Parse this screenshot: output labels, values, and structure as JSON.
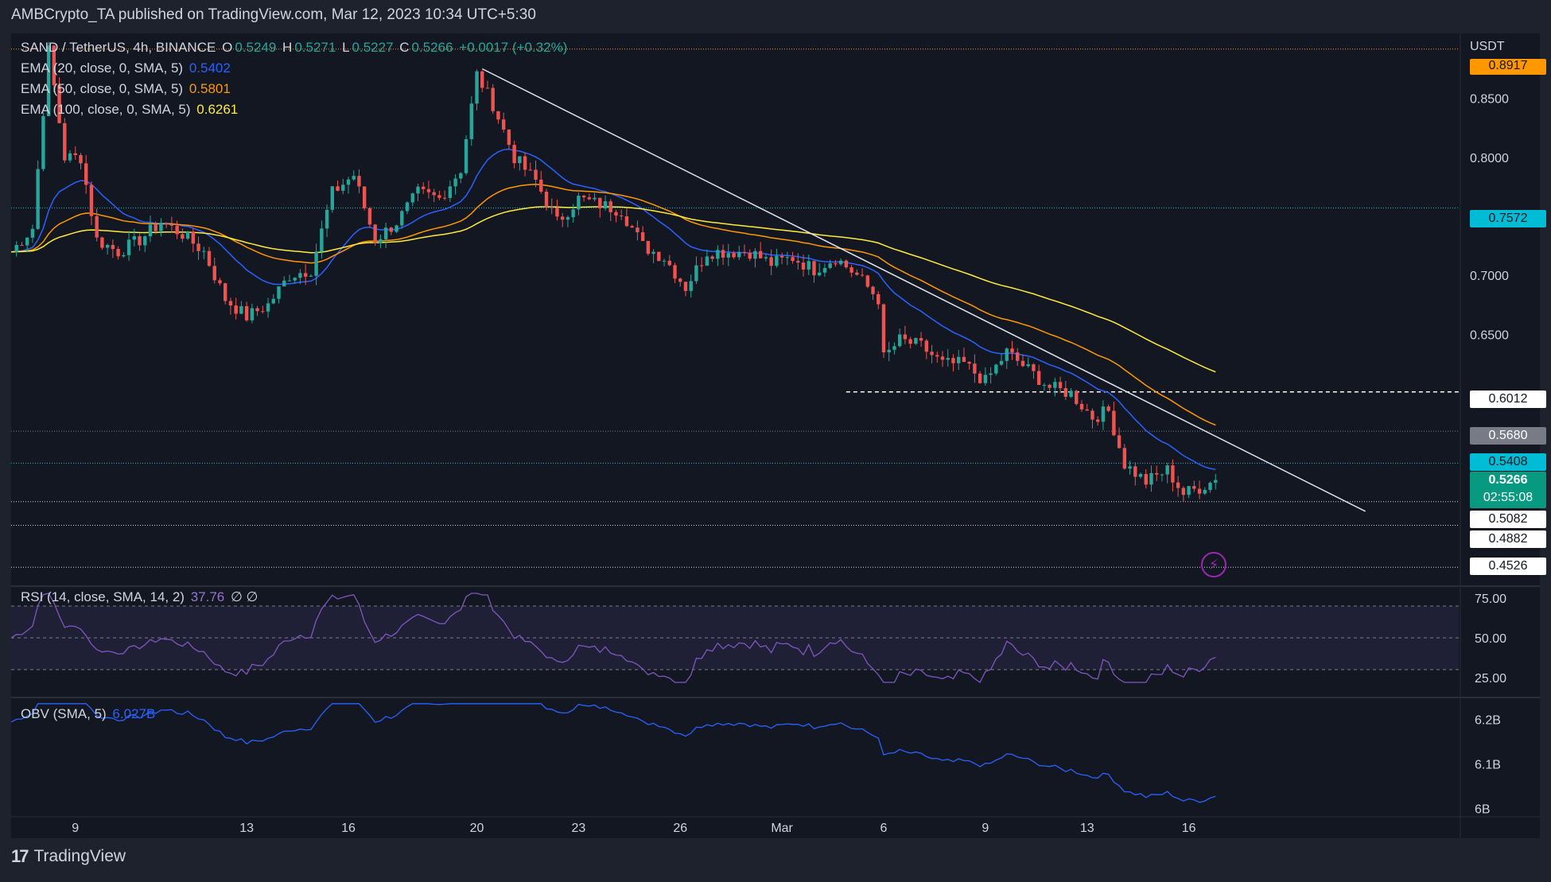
{
  "header": {
    "published_line": "AMBCrypto_TA published on TradingView.com, Mar 12, 2023 10:34 UTC+5:30"
  },
  "legend": {
    "symbol": "SAND / TetherUS, 4h, BINANCE",
    "open_label": "O",
    "open": "0.5249",
    "high_label": "H",
    "high": "0.5271",
    "low_label": "L",
    "low": "0.5227",
    "close_label": "C",
    "close": "0.5266",
    "change": "+0.0017 (+0.32%)",
    "ema20_label": "EMA (20, close, 0, SMA, 5)",
    "ema20_value": "0.5402",
    "ema50_label": "EMA (50, close, 0, SMA, 5)",
    "ema50_value": "0.5801",
    "ema100_label": "EMA (100, close, 0, SMA, 5)",
    "ema100_value": "0.6261",
    "rsi_label": "RSI (14, close, SMA, 14, 2)",
    "rsi_value": "37.76",
    "rsi_extra": "∅ ∅",
    "obv_label": "OBV (SMA, 5)",
    "obv_value": "6.027B"
  },
  "axis": {
    "currency": "USDT",
    "price_ticks": [
      "0.8500",
      "0.8000",
      "0.7000",
      "0.6500"
    ],
    "rsi_ticks": [
      "75.00",
      "50.00",
      "25.00"
    ],
    "obv_ticks": [
      "6.2B",
      "6.1B",
      "6B"
    ],
    "time_ticks": [
      "9",
      "13",
      "16",
      "20",
      "23",
      "26",
      "Mar",
      "6",
      "9",
      "13",
      "16"
    ]
  },
  "price_tags": {
    "top": "0.8917",
    "cyan": "0.7572",
    "dashed": "0.6012",
    "gray": "0.5680",
    "ema": "0.5408",
    "current": "0.5266",
    "countdown": "02:55:08",
    "level1": "0.5082",
    "level2": "0.4882",
    "level3": "0.4526"
  },
  "footer": {
    "logo": "17",
    "name": "TradingView"
  },
  "colors": {
    "up": "#26a69a",
    "down": "#ef5350",
    "ema20": "#2962ff",
    "ema50": "#ff9800",
    "ema100": "#ffeb3b",
    "rsi": "#7e57c2",
    "obv": "#2962ff"
  },
  "chart_data": {
    "type": "candlestick",
    "title": "SAND / TetherUS, 4h, BINANCE",
    "ylabel": "USDT",
    "ylim": [
      0.44,
      0.905
    ],
    "x_ticks": [
      "9",
      "13",
      "16",
      "20",
      "23",
      "26",
      "Mar",
      "6",
      "9",
      "13",
      "16"
    ],
    "price_path": [
      [
        0,
        0.72
      ],
      [
        4,
        0.74
      ],
      [
        7,
        0.89
      ],
      [
        10,
        0.8
      ],
      [
        13,
        0.8
      ],
      [
        16,
        0.73
      ],
      [
        20,
        0.72
      ],
      [
        24,
        0.73
      ],
      [
        28,
        0.745
      ],
      [
        32,
        0.735
      ],
      [
        36,
        0.72
      ],
      [
        40,
        0.68
      ],
      [
        44,
        0.665
      ],
      [
        48,
        0.675
      ],
      [
        52,
        0.7
      ],
      [
        56,
        0.705
      ],
      [
        60,
        0.77
      ],
      [
        64,
        0.785
      ],
      [
        68,
        0.73
      ],
      [
        72,
        0.745
      ],
      [
        76,
        0.77
      ],
      [
        80,
        0.765
      ],
      [
        84,
        0.79
      ],
      [
        87,
        0.87
      ],
      [
        90,
        0.845
      ],
      [
        94,
        0.8
      ],
      [
        98,
        0.78
      ],
      [
        102,
        0.745
      ],
      [
        106,
        0.765
      ],
      [
        110,
        0.76
      ],
      [
        114,
        0.755
      ],
      [
        118,
        0.725
      ],
      [
        122,
        0.715
      ],
      [
        126,
        0.69
      ],
      [
        130,
        0.72
      ],
      [
        134,
        0.72
      ],
      [
        138,
        0.72
      ],
      [
        142,
        0.71
      ],
      [
        146,
        0.715
      ],
      [
        150,
        0.705
      ],
      [
        154,
        0.715
      ],
      [
        158,
        0.7
      ],
      [
        162,
        0.68
      ],
      [
        163,
        0.63
      ],
      [
        166,
        0.645
      ],
      [
        170,
        0.64
      ],
      [
        174,
        0.625
      ],
      [
        178,
        0.625
      ],
      [
        182,
        0.61
      ],
      [
        186,
        0.635
      ],
      [
        190,
        0.62
      ],
      [
        194,
        0.605
      ],
      [
        198,
        0.6
      ],
      [
        202,
        0.58
      ],
      [
        205,
        0.585
      ],
      [
        208,
        0.54
      ],
      [
        212,
        0.525
      ],
      [
        216,
        0.535
      ],
      [
        219,
        0.515
      ],
      [
        222,
        0.52
      ],
      [
        225,
        0.5266
      ]
    ],
    "ema20": "0.5402",
    "ema50": "0.5801",
    "ema100": "0.6261",
    "trendline": {
      "from": [
        88,
        0.875
      ],
      "to": [
        253,
        0.5
      ]
    },
    "levels": [
      0.8917,
      0.7572,
      0.6012,
      0.568,
      0.5408,
      0.5082,
      0.4882,
      0.4526
    ],
    "rsi": {
      "ylim": [
        15,
        80
      ],
      "bands": [
        70,
        30
      ],
      "last": 37.76
    },
    "obv": {
      "ylim": [
        5.99,
        6.24
      ],
      "last": 6.027
    }
  }
}
